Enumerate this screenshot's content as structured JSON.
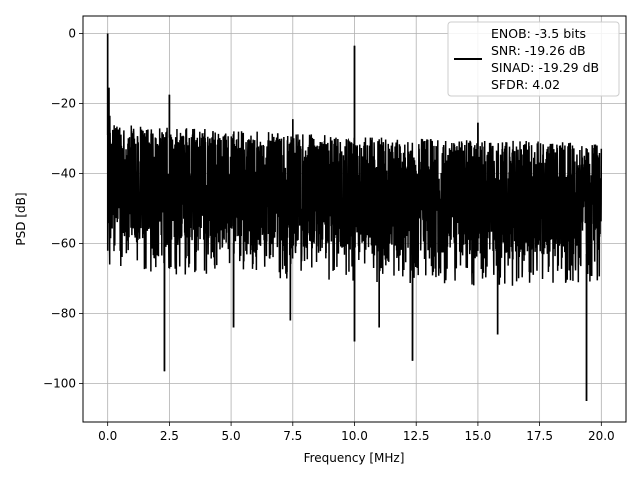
{
  "chart_data": {
    "type": "line",
    "xlabel": "Frequency [MHz]",
    "ylabel": "PSD [dB]",
    "xlim": [
      -1.0,
      21.0
    ],
    "ylim": [
      -111,
      5
    ],
    "xticks": [
      0.0,
      2.5,
      5.0,
      7.5,
      10.0,
      12.5,
      15.0,
      17.5,
      20.0
    ],
    "xtick_labels": [
      "0.0",
      "2.5",
      "5.0",
      "7.5",
      "10.0",
      "12.5",
      "15.0",
      "17.5",
      "20.0"
    ],
    "yticks": [
      0,
      -20,
      -40,
      -60,
      -80,
      -100
    ],
    "ytick_labels": [
      "0",
      "−20",
      "−40",
      "−60",
      "−80",
      "−100"
    ],
    "grid": true,
    "legend_position": "top-right",
    "series": [
      {
        "color": "#000000",
        "x_range": [
          0.0,
          20.0
        ],
        "noise_band": {
          "upper_edge": {
            "x": [
              0.0,
              0.2,
              2.0,
              5.0,
              10.0,
              15.0,
              20.0
            ],
            "y": [
              -21,
              -26,
              -26.5,
              -27.5,
              -29.5,
              -30.5,
              -31.0
            ]
          },
          "lower_edge": {
            "x": [
              0.0,
              5.0,
              10.0,
              15.0,
              20.0
            ],
            "y": [
              -68,
              -69.5,
              -71,
              -72,
              -72.5
            ]
          },
          "dense_top": {
            "x": [
              0.0,
              5.0,
              10.0,
              15.0,
              20.0
            ],
            "y": [
              -29,
              -30.5,
              -32,
              -33,
              -33.5
            ]
          },
          "dense_bottom": {
            "x": [
              0.0,
              5.0,
              10.0,
              15.0,
              20.0
            ],
            "y": [
              -58,
              -60,
              -62,
              -63,
              -63
            ]
          }
        },
        "peaks": [
          {
            "x": 0.0,
            "y": 0.0
          },
          {
            "x": 0.05,
            "y": -15.5
          },
          {
            "x": 2.5,
            "y": -17.5
          },
          {
            "x": 7.5,
            "y": -24.5
          },
          {
            "x": 10.0,
            "y": -3.5
          },
          {
            "x": 15.0,
            "y": -25.5
          }
        ],
        "notches": [
          {
            "x": 2.3,
            "y": -96.5
          },
          {
            "x": 5.1,
            "y": -84
          },
          {
            "x": 7.4,
            "y": -82
          },
          {
            "x": 10.0,
            "y": -88
          },
          {
            "x": 11.0,
            "y": -84
          },
          {
            "x": 12.35,
            "y": -93.5
          },
          {
            "x": 15.8,
            "y": -86
          },
          {
            "x": 19.4,
            "y": -105
          }
        ]
      }
    ],
    "legend": {
      "lines": [
        "ENOB: -3.5 bits",
        "SNR: -19.26 dB",
        "SINAD: -19.29 dB",
        "SFDR: 4.02"
      ]
    }
  }
}
